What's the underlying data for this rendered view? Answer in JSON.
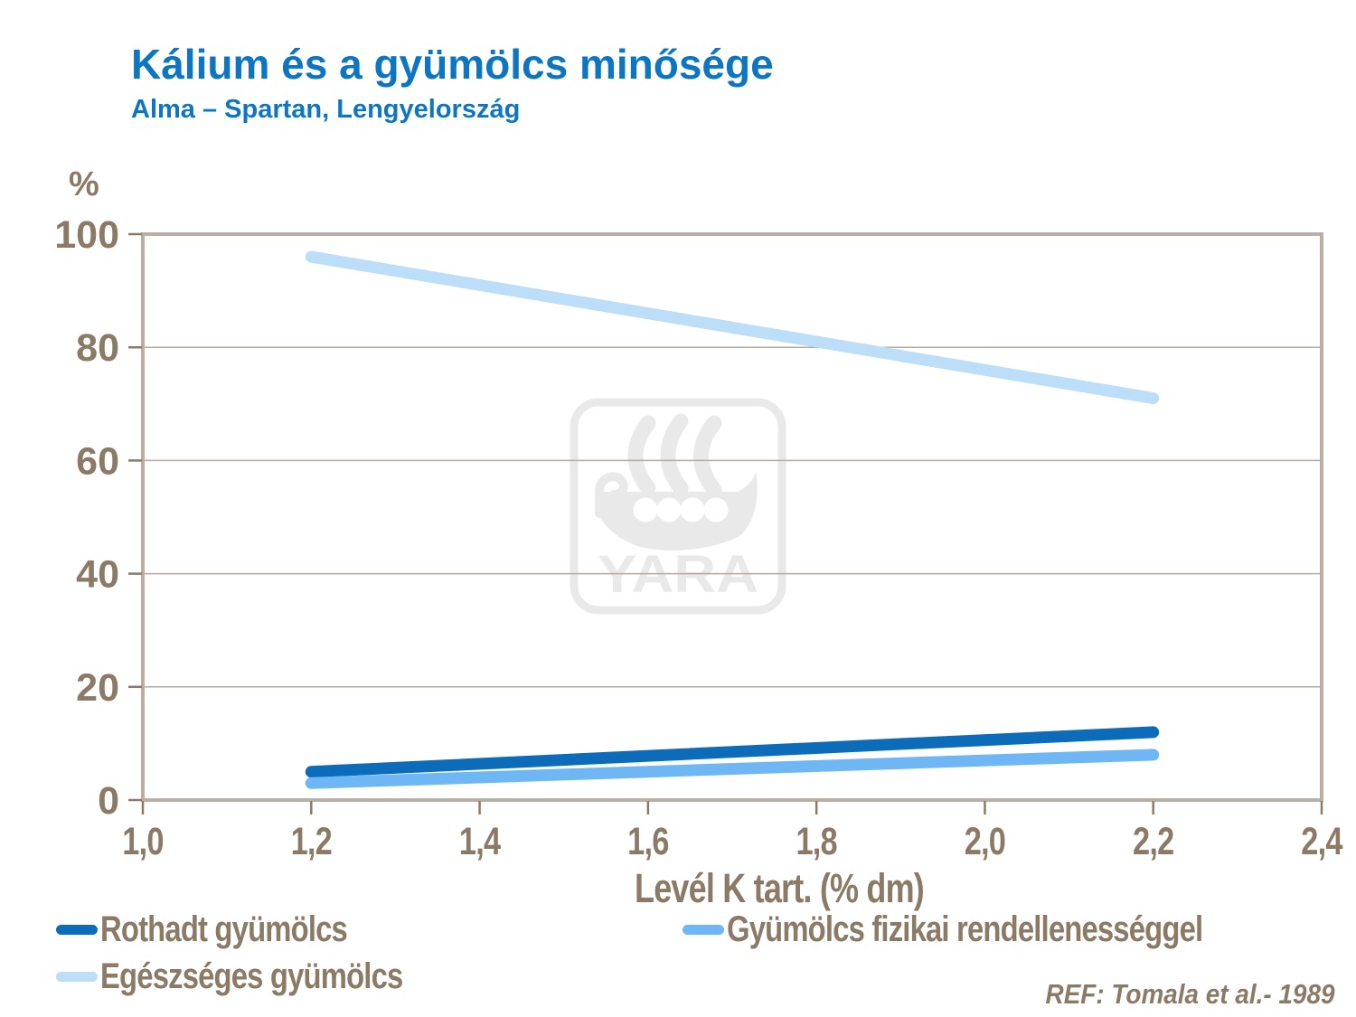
{
  "header": {
    "title": "Kálium és a gyümölcs minősége",
    "subtitle": "Alma – Spartan, Lengyelország"
  },
  "chart_data": {
    "type": "line",
    "title": "Kálium és a gyümölcs minősége",
    "subtitle": "Alma – Spartan, Lengyelország",
    "xlabel": "Levél K tart. (% dm)",
    "ylabel": "%",
    "xlim": [
      1.0,
      2.4
    ],
    "ylim": [
      0,
      100
    ],
    "x_tick_values": [
      1.0,
      1.2,
      1.4,
      1.6,
      1.8,
      2.0,
      2.2,
      2.4
    ],
    "x_tick_labels": [
      "1,0",
      "1,2",
      "1,4",
      "1,6",
      "1,8",
      "2,0",
      "2,2",
      "2,4"
    ],
    "y_tick_values": [
      0,
      20,
      40,
      60,
      80,
      100
    ],
    "y_tick_labels": [
      "0",
      "20",
      "40",
      "60",
      "80",
      "100"
    ],
    "grid": "horizontal",
    "legend_position": "bottom",
    "series": [
      {
        "name": "Rothadt gyümölcs",
        "color": "#0c6cba",
        "x": [
          1.2,
          2.2
        ],
        "y": [
          5,
          12
        ]
      },
      {
        "name": "Gyümölcs fizikai rendellenességgel",
        "color": "#6fb7f4",
        "x": [
          1.2,
          2.2
        ],
        "y": [
          3,
          8
        ]
      },
      {
        "name": "Egészséges gyümölcs",
        "color": "#bcdef8",
        "x": [
          1.2,
          2.2
        ],
        "y": [
          96,
          71
        ]
      }
    ]
  },
  "legend": {
    "items": [
      {
        "label": "Rothadt gyümölcs",
        "color": "#0c6cba"
      },
      {
        "label": "Gyümölcs fizikai rendellenességgel",
        "color": "#6fb7f4"
      },
      {
        "label": "Egészséges gyümölcs",
        "color": "#bcdef8"
      }
    ]
  },
  "watermark": {
    "text": "YARA"
  },
  "footer": {
    "ref": "REF: Tomala et al.- 1989"
  },
  "colors": {
    "title": "#0d76c2",
    "axis_text": "#8a7a66",
    "frame": "#b9afa5",
    "gridline": "#b3a99e",
    "watermark": "#e9e9e9",
    "background": "#ffffff"
  }
}
